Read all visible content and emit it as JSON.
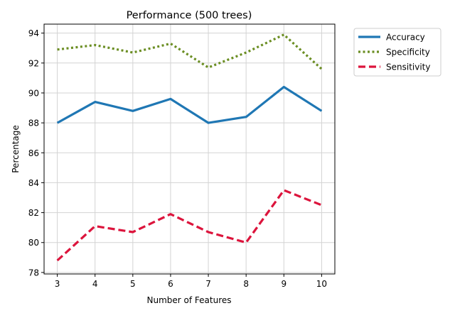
{
  "chart_data": {
    "type": "line",
    "title": "Performance (500 trees)",
    "xlabel": "Number of Features",
    "ylabel": "Percentage",
    "x": [
      3,
      4,
      5,
      6,
      7,
      8,
      9,
      10
    ],
    "xlim": [
      2.65,
      10.35
    ],
    "ylim": [
      77.9,
      94.6
    ],
    "yticks": [
      78,
      80,
      82,
      84,
      86,
      88,
      90,
      92,
      94
    ],
    "grid": true,
    "legend_position": "outside top-right",
    "series": [
      {
        "name": "Accuracy",
        "values": [
          88.0,
          89.4,
          88.8,
          89.6,
          88.0,
          88.4,
          90.4,
          88.8
        ],
        "color": "#1f77b4",
        "style": "solid"
      },
      {
        "name": "Specificity",
        "values": [
          92.9,
          93.2,
          92.7,
          93.3,
          91.7,
          92.7,
          93.9,
          91.6
        ],
        "color": "#6b8e23",
        "style": "dotted"
      },
      {
        "name": "Sensitivity",
        "values": [
          78.8,
          81.1,
          80.7,
          81.9,
          80.7,
          80.0,
          83.5,
          82.5
        ],
        "color": "#dc143c",
        "style": "dashed"
      }
    ]
  }
}
